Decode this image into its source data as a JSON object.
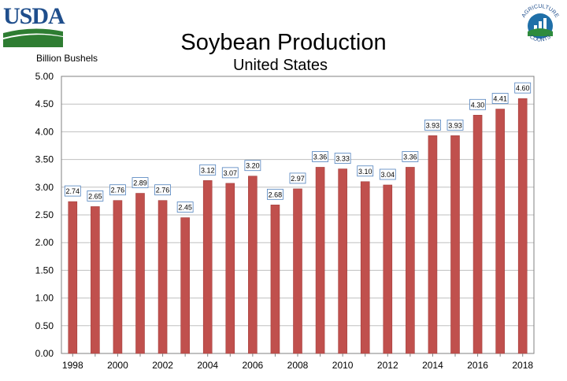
{
  "header": {
    "usda_logo_text": "USDA",
    "ag_counts_top": "AGRICULTURE",
    "ag_counts_bottom": "COUNTS"
  },
  "colors": {
    "bar": "#c0504d",
    "bar_edge": "#a43f3c",
    "label_border": "#4f81bd",
    "grid": "#bfbfbf"
  },
  "chart_data": {
    "type": "bar",
    "title": "Soybean Production",
    "subtitle": "United States",
    "ylabel": "Billion Bushels",
    "xlabel": "",
    "ylim": [
      0,
      5
    ],
    "y_ticks": [
      "0.00",
      "0.50",
      "1.00",
      "1.50",
      "2.00",
      "2.50",
      "3.00",
      "3.50",
      "4.00",
      "4.50",
      "5.00"
    ],
    "categories": [
      "1998",
      "1999",
      "2000",
      "2001",
      "2002",
      "2003",
      "2004",
      "2005",
      "2006",
      "2007",
      "2008",
      "2009",
      "2010",
      "2011",
      "2012",
      "2013",
      "2014",
      "2015",
      "2016",
      "2017",
      "2018"
    ],
    "x_tick_labels": [
      "1998",
      "",
      "2000",
      "",
      "2002",
      "",
      "2004",
      "",
      "2006",
      "",
      "2008",
      "",
      "2010",
      "",
      "2012",
      "",
      "2014",
      "",
      "2016",
      "",
      "2018"
    ],
    "values": [
      2.74,
      2.65,
      2.76,
      2.89,
      2.76,
      2.45,
      3.12,
      3.07,
      3.2,
      2.68,
      2.97,
      3.36,
      3.33,
      3.1,
      3.04,
      3.36,
      3.93,
      3.93,
      4.3,
      4.41,
      4.6
    ],
    "data_labels": [
      "2.74",
      "2.65",
      "2.76",
      "2.89",
      "2.76",
      "2.45",
      "3.12",
      "3.07",
      "3.20",
      "2.68",
      "2.97",
      "3.36",
      "3.33",
      "3.10",
      "3.04",
      "3.36",
      "3.93",
      "3.93",
      "4.30",
      "4.41",
      "4.60"
    ],
    "grid": true,
    "legend": "none"
  }
}
